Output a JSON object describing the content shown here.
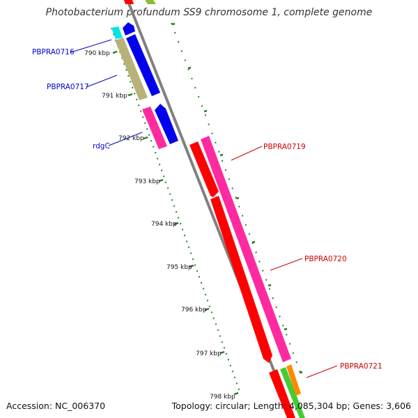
{
  "title": "Photobacterium profundum SS9 chromosome 1, complete genome",
  "footer": {
    "accession": "Accession: NC_006370",
    "stats": "Topology: circular; Length: 4,085,304 bp; Genes: 3,606"
  },
  "ticks": [
    "790 kbp",
    "791 kbp",
    "792 kbp",
    "793 kbp",
    "794 kbp",
    "795 kbp",
    "796 kbp",
    "797 kbp",
    "798 kbp"
  ],
  "genes": [
    {
      "id": "PBPRA0716",
      "label": "PBPRA0716",
      "color": "#0000cc"
    },
    {
      "id": "PBPRA0717",
      "label": "PBPRA0717",
      "color": "#0000cc"
    },
    {
      "id": "rdgC",
      "label": "rdgC",
      "color": "#0000cc"
    },
    {
      "id": "PBPRA0719",
      "label": "PBPRA0719",
      "color": "#cc0000"
    },
    {
      "id": "PBPRA0720",
      "label": "PBPRA0720",
      "color": "#cc0000"
    },
    {
      "id": "PBPRA0721",
      "label": "PBPRA0721",
      "color": "#cc0000"
    }
  ],
  "colors": {
    "backbone": "#808080",
    "tick": "#2a7a2a",
    "feature_red": "#ff0000",
    "feature_pink": "#ff2aa0",
    "feature_blue": "#0000ee",
    "feature_olive": "#b8b27a",
    "feature_cyan": "#00e5e5",
    "feature_green": "#44cc33",
    "feature_orange": "#ff8a00"
  }
}
